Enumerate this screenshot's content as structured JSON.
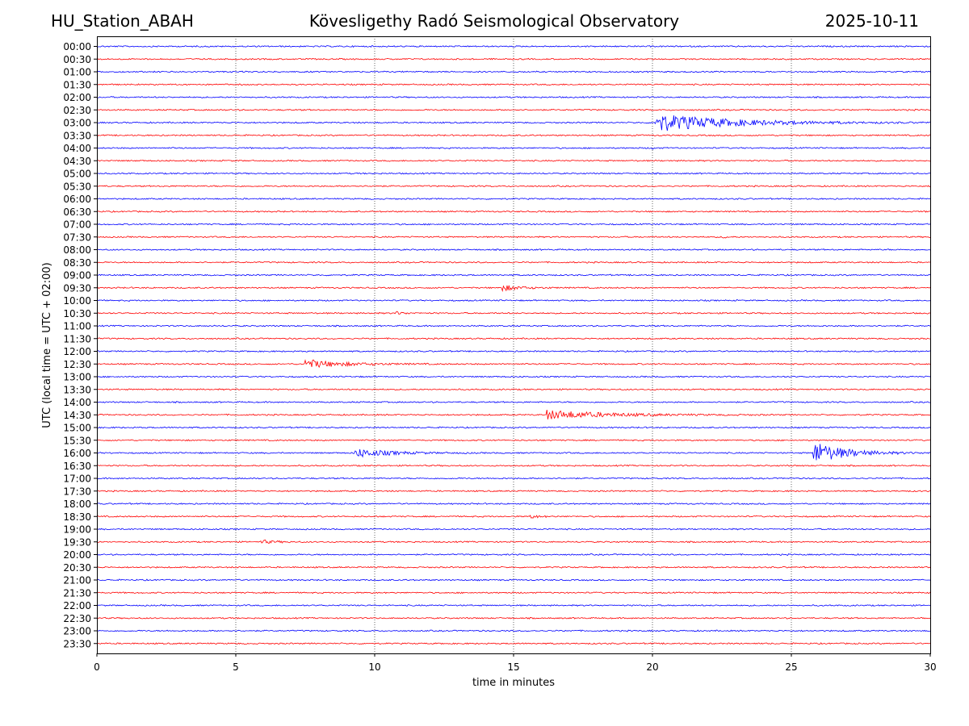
{
  "header": {
    "station": "HU_Station_ABAH",
    "title": "Kövesligethy Radó Seismological Observatory",
    "date": "2025-10-11"
  },
  "chart_data": {
    "type": "line",
    "title": "Kövesligethy Radó Seismological Observatory",
    "xlabel": "time in minutes",
    "ylabel": "UTC (local time = UTC + 02:00)",
    "xlim": [
      0,
      30
    ],
    "xticks": [
      "0",
      "5",
      "10",
      "15",
      "20",
      "25",
      "30"
    ],
    "grid": "vertical dotted lines at each x tick",
    "colors": [
      "#0000ff",
      "#ff0000"
    ],
    "rows": [
      "00:00",
      "00:30",
      "01:00",
      "01:30",
      "02:00",
      "02:30",
      "03:00",
      "03:30",
      "04:00",
      "04:30",
      "05:00",
      "05:30",
      "06:00",
      "06:30",
      "07:00",
      "07:30",
      "08:00",
      "08:30",
      "09:00",
      "09:30",
      "10:00",
      "10:30",
      "11:00",
      "11:30",
      "12:00",
      "12:30",
      "13:00",
      "13:30",
      "14:00",
      "14:30",
      "15:00",
      "15:30",
      "16:00",
      "16:30",
      "17:00",
      "17:30",
      "18:00",
      "18:30",
      "19:00",
      "19:30",
      "20:00",
      "20:30",
      "21:00",
      "21:30",
      "22:00",
      "22:30",
      "23:00",
      "23:30"
    ],
    "events": [
      {
        "row": "03:00",
        "start_min": 20.1,
        "duration_min": 10,
        "peak_amplitude": 1.6
      },
      {
        "row": "09:30",
        "start_min": 14.6,
        "duration_min": 2.5,
        "peak_amplitude": 0.5
      },
      {
        "row": "10:30",
        "start_min": 10.7,
        "duration_min": 1.2,
        "peak_amplitude": 0.3
      },
      {
        "row": "12:30",
        "start_min": 7.5,
        "duration_min": 5,
        "peak_amplitude": 0.8
      },
      {
        "row": "14:30",
        "start_min": 16.2,
        "duration_min": 8,
        "peak_amplitude": 0.8
      },
      {
        "row": "16:00",
        "start_min": 9.3,
        "duration_min": 4.5,
        "peak_amplitude": 0.8
      },
      {
        "row": "16:00",
        "start_min": 25.8,
        "duration_min": 4.2,
        "peak_amplitude": 2.0
      },
      {
        "row": "18:30",
        "start_min": 15.6,
        "duration_min": 1.2,
        "peak_amplitude": 0.3
      },
      {
        "row": "19:30",
        "start_min": 5.9,
        "duration_min": 2.0,
        "peak_amplitude": 0.3
      },
      {
        "row": "07:30",
        "start_min": 22.5,
        "duration_min": 0.5,
        "peak_amplitude": 0.3
      },
      {
        "row": "04:00",
        "start_min": 20.0,
        "duration_min": 0.2,
        "peak_amplitude": 0.3
      }
    ]
  }
}
